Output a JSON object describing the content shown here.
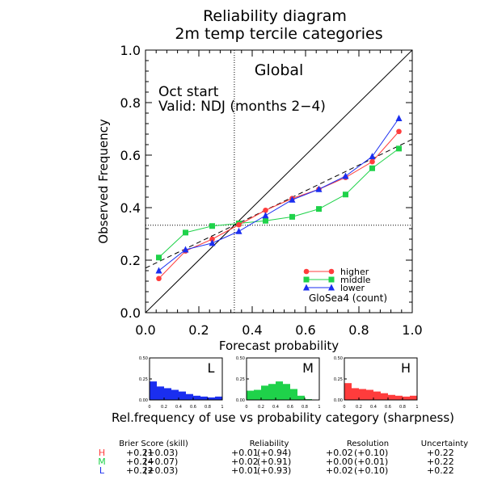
{
  "title": "Reliability diagram",
  "subtitle": "2m temp tercile categories",
  "region_label": "Global",
  "start_label": "Oct start",
  "valid_label": "Valid: NDJ (months 2−4)",
  "sharpness_caption": "Rel.frequency of use vs probability category (sharpness)",
  "colors": {
    "higher": "#ff3c3c",
    "middle": "#1fd24a",
    "lower": "#1a2ef0"
  },
  "chart_data": [
    {
      "type": "line",
      "title": "Reliability diagram",
      "subtitle": "2m temp tercile categories",
      "xlabel": "Forecast probability",
      "ylabel": "Observed Frequency",
      "xlim": [
        0,
        1
      ],
      "ylim": [
        0,
        1
      ],
      "xticks": [
        "0.0",
        "0.2",
        "0.4",
        "0.6",
        "0.8",
        "1.0"
      ],
      "yticks": [
        "0.0",
        "0.2",
        "0.4",
        "0.6",
        "0.8",
        "1.0"
      ],
      "x": [
        0.05,
        0.15,
        0.25,
        0.35,
        0.45,
        0.55,
        0.65,
        0.75,
        0.85,
        0.95
      ],
      "series": [
        {
          "name": "higher",
          "key": "higher",
          "marker": "circle",
          "values": [
            0.13,
            0.235,
            0.28,
            0.335,
            0.39,
            0.435,
            0.47,
            0.515,
            0.575,
            0.69
          ]
        },
        {
          "name": "middle",
          "key": "middle",
          "marker": "square",
          "values": [
            0.21,
            0.305,
            0.33,
            0.34,
            0.35,
            0.365,
            0.395,
            0.45,
            0.55,
            0.625
          ]
        },
        {
          "name": "lower",
          "key": "lower",
          "marker": "triangle",
          "values": [
            0.16,
            0.24,
            0.265,
            0.31,
            0.37,
            0.43,
            0.47,
            0.52,
            0.595,
            0.74
          ]
        }
      ],
      "climatology": {
        "x": 0.333,
        "y": 0.333
      },
      "regression_line": {
        "x": [
          0.0,
          1.0
        ],
        "y": [
          0.17,
          0.66
        ]
      },
      "legend": {
        "placement": "bottom-right",
        "note": "GloSea4 (count)"
      }
    },
    {
      "type": "bar",
      "label": "L",
      "key": "lower",
      "xticks": [
        "0",
        "0.2",
        "0.4",
        "0.6",
        "0.8",
        "1"
      ],
      "yticks": [
        "0.00",
        "0.25",
        "0.50"
      ],
      "ylim": [
        0,
        0.5
      ],
      "values": [
        0.22,
        0.16,
        0.14,
        0.12,
        0.1,
        0.07,
        0.05,
        0.04,
        0.03,
        0.04
      ]
    },
    {
      "type": "bar",
      "label": "M",
      "key": "middle",
      "xticks": [
        "0",
        "0.2",
        "0.4",
        "0.6",
        "0.8",
        "1"
      ],
      "yticks": [
        "0.00",
        "0.25",
        "0.50"
      ],
      "ylim": [
        0,
        0.5
      ],
      "values": [
        0.11,
        0.12,
        0.17,
        0.19,
        0.22,
        0.19,
        0.13,
        0.05,
        0.01,
        0.0
      ]
    },
    {
      "type": "bar",
      "label": "H",
      "key": "higher",
      "xticks": [
        "0",
        "0.2",
        "0.4",
        "0.6",
        "0.8",
        "1"
      ],
      "yticks": [
        "0.00",
        "0.25",
        "0.50"
      ],
      "ylim": [
        0,
        0.5
      ],
      "values": [
        0.2,
        0.14,
        0.13,
        0.12,
        0.1,
        0.08,
        0.06,
        0.05,
        0.04,
        0.05
      ]
    }
  ],
  "scores": {
    "headers": [
      "Brier Score (skill)",
      "Reliability",
      "Resolution",
      "Uncertainty"
    ],
    "rows": [
      {
        "label": "H",
        "key": "higher",
        "brier": "+0.21",
        "brier_skill": "(+0.03)",
        "reliability": "+0.01",
        "reliability_skill": "(+0.94)",
        "resolution": "+0.02",
        "resolution_skill": "(+0.10)",
        "uncertainty": "+0.22"
      },
      {
        "label": "M",
        "key": "middle",
        "brier": "+0.24",
        "brier_skill": "(−0.07)",
        "reliability": "+0.02",
        "reliability_skill": "(+0.91)",
        "resolution": "+0.00",
        "resolution_skill": "(+0.01)",
        "uncertainty": "+0.22"
      },
      {
        "label": "L",
        "key": "lower",
        "brier": "+0.22",
        "brier_skill": "(+0.03)",
        "reliability": "+0.01",
        "reliability_skill": "(+0.93)",
        "resolution": "+0.02",
        "resolution_skill": "(+0.10)",
        "uncertainty": "+0.22"
      }
    ]
  }
}
